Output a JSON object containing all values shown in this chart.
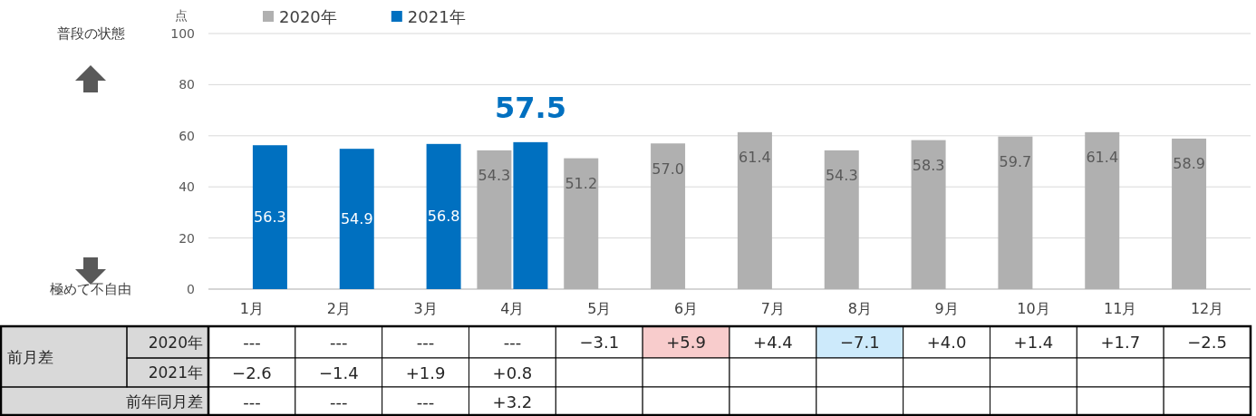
{
  "chart_data": [
    {
      "type": "bar",
      "ylabel": "点",
      "categories": [
        "1月",
        "2月",
        "3月",
        "4月",
        "5月",
        "6月",
        "7月",
        "8月",
        "9月",
        "10月",
        "11月",
        "12月"
      ],
      "series": [
        {
          "name": "2020年",
          "color": "#b0b0b0",
          "values": [
            null,
            null,
            null,
            54.3,
            51.2,
            57.0,
            61.4,
            54.3,
            58.3,
            59.7,
            61.4,
            58.9
          ],
          "value_labels": [
            null,
            null,
            null,
            "54.3",
            "51.2",
            "57.0",
            "61.4",
            "54.3",
            "58.3",
            "59.7",
            "61.4",
            "58.9"
          ]
        },
        {
          "name": "2021年",
          "color": "#0070c0",
          "values": [
            56.3,
            54.9,
            56.8,
            57.5,
            null,
            null,
            null,
            null,
            null,
            null,
            null,
            null
          ],
          "value_labels": [
            "56.3",
            "54.9",
            "56.8",
            null,
            null,
            null,
            null,
            null,
            null,
            null,
            null,
            null
          ]
        }
      ],
      "ylim": [
        0,
        100
      ],
      "yticks": [
        0,
        20,
        40,
        60,
        80,
        100
      ],
      "grid": "y",
      "legend": "top",
      "annotations": [
        "普段の状態",
        "極めて不自由",
        {
          "text": "57.5",
          "x": "4月",
          "y": 57.5
        }
      ]
    },
    {
      "type": "heatmap",
      "categories": [
        null,
        null,
        null,
        null,
        null,
        null,
        null,
        null,
        null,
        null,
        null,
        null
      ],
      "y_categories": [
        "2020年",
        "2021年",
        "前年同月差"
      ],
      "annotations": [
        "前月差"
      ],
      "cells": [
        [
          null,
          null,
          null,
          null,
          null,
          null,
          null,
          null,
          null,
          null,
          null,
          null
        ],
        [
          null,
          null,
          null,
          null,
          null,
          null,
          null,
          null,
          null,
          null,
          null,
          null
        ],
        [
          null,
          null,
          null,
          null,
          null,
          null,
          null,
          null,
          null,
          null,
          null,
          null
        ]
      ],
      "cell_labels": [
        [
          "---",
          "---",
          "---",
          "---",
          "−3.1",
          "+5.9",
          "+4.4",
          "−7.1",
          "+4.0",
          "+1.4",
          "+1.7",
          "−2.5"
        ],
        [
          "−2.6",
          "−1.4",
          "+1.9",
          "+0.8",
          null,
          null,
          null,
          null,
          null,
          null,
          null,
          null
        ],
        [
          "---",
          "---",
          "---",
          "+3.2",
          null,
          null,
          null,
          null,
          null,
          null,
          null,
          null
        ]
      ],
      "colors": [
        [
          null,
          null,
          null,
          null,
          null,
          "#f8cccc",
          null,
          "#cdeafb",
          null,
          null,
          null,
          null
        ],
        [
          null,
          null,
          null,
          null,
          null,
          null,
          null,
          null,
          null,
          null,
          null,
          null
        ],
        [
          null,
          null,
          null,
          null,
          null,
          null,
          null,
          null,
          null,
          null,
          null,
          null
        ]
      ]
    }
  ]
}
